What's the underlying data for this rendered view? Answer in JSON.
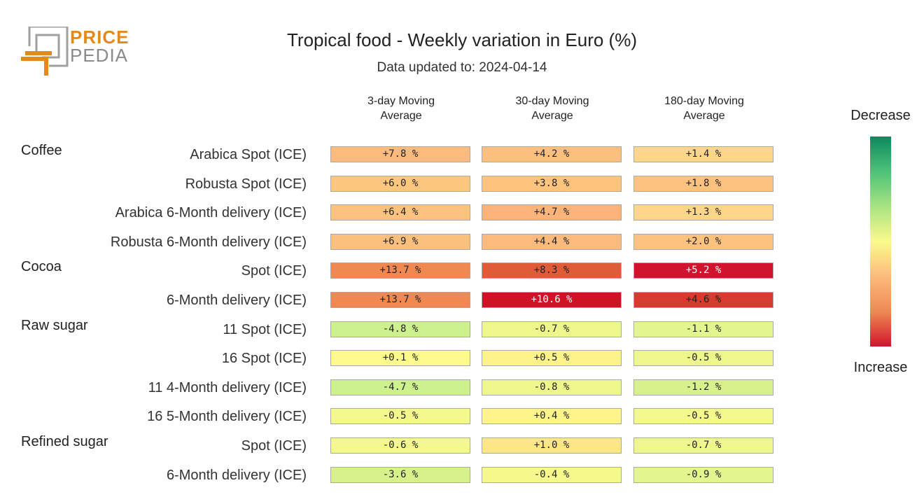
{
  "logo": {
    "word1": "PRICE",
    "word2": "PEDIA",
    "color_primary": "#e38a1c",
    "color_secondary": "#8a8a8a"
  },
  "chart_data": {
    "type": "heatmap",
    "title": "Tropical food - Weekly variation in Euro (%)",
    "subtitle": "Data updated to: 2024-04-14",
    "columns": [
      "3-day Moving\nAverage",
      "30-day Moving\nAverage",
      "180-day Moving\nAverage"
    ],
    "rows": [
      {
        "group": "Coffee",
        "label": "Arabica Spot (ICE)",
        "values": [
          7.8,
          4.2,
          1.4
        ],
        "text": [
          "+7.8 %",
          "+4.2 %",
          "+1.4 %"
        ]
      },
      {
        "group": "",
        "label": "Robusta Spot (ICE)",
        "values": [
          6.0,
          3.8,
          1.8
        ],
        "text": [
          "+6.0 %",
          "+3.8 %",
          "+1.8 %"
        ]
      },
      {
        "group": "",
        "label": "Arabica 6-Month delivery (ICE)",
        "values": [
          6.4,
          4.7,
          1.3
        ],
        "text": [
          "+6.4 %",
          "+4.7 %",
          "+1.3 %"
        ]
      },
      {
        "group": "",
        "label": "Robusta 6-Month delivery (ICE)",
        "values": [
          6.9,
          4.4,
          2.0
        ],
        "text": [
          "+6.9 %",
          "+4.4 %",
          "+2.0 %"
        ]
      },
      {
        "group": "Cocoa",
        "label": "Spot (ICE)",
        "values": [
          13.7,
          8.3,
          5.2
        ],
        "text": [
          "+13.7 %",
          "+8.3 %",
          "+5.2 %"
        ]
      },
      {
        "group": "",
        "label": "6-Month delivery (ICE)",
        "values": [
          13.7,
          10.6,
          4.6
        ],
        "text": [
          "+13.7 %",
          "+10.6 %",
          "+4.6 %"
        ]
      },
      {
        "group": "Raw sugar",
        "label": "11 Spot (ICE)",
        "values": [
          -4.8,
          -0.7,
          -1.1
        ],
        "text": [
          "-4.8 %",
          "-0.7 %",
          "-1.1 %"
        ]
      },
      {
        "group": "",
        "label": "16 Spot (ICE)",
        "values": [
          0.1,
          0.5,
          -0.5
        ],
        "text": [
          "+0.1 %",
          "+0.5 %",
          "-0.5 %"
        ]
      },
      {
        "group": "",
        "label": "11 4-Month delivery (ICE)",
        "values": [
          -4.7,
          -0.8,
          -1.2
        ],
        "text": [
          "-4.7 %",
          "-0.8 %",
          "-1.2 %"
        ]
      },
      {
        "group": "",
        "label": "16 5-Month delivery (ICE)",
        "values": [
          -0.5,
          0.4,
          -0.5
        ],
        "text": [
          "-0.5 %",
          "+0.4 %",
          "-0.5 %"
        ]
      },
      {
        "group": "Refined sugar",
        "label": "Spot (ICE)",
        "values": [
          -0.6,
          1.0,
          -0.7
        ],
        "text": [
          "-0.6 %",
          "+1.0 %",
          "-0.7 %"
        ]
      },
      {
        "group": "",
        "label": "6-Month delivery (ICE)",
        "values": [
          -3.6,
          -0.4,
          -0.9
        ],
        "text": [
          "-3.6 %",
          "-0.4 %",
          "-0.9 %"
        ]
      }
    ],
    "cell_colors": [
      [
        "#fcbb7c",
        "#fdbf7d",
        "#fed68a"
      ],
      [
        "#fdc77f",
        "#fec47d",
        "#fdc27e"
      ],
      [
        "#fdc27e",
        "#fcb47a",
        "#fed68a"
      ],
      [
        "#fcc07e",
        "#fcbb7c",
        "#fdc27e"
      ],
      [
        "#ef8851",
        "#e05c39",
        "#d0142d"
      ],
      [
        "#ef8851",
        "#d01226",
        "#d63b2f"
      ],
      [
        "#cdf18c",
        "#eef78c",
        "#e3f58f"
      ],
      [
        "#fcfb8b",
        "#fef38b",
        "#eef78c"
      ],
      [
        "#cdf18c",
        "#eef78c",
        "#d7f28b"
      ],
      [
        "#f3f98c",
        "#fdf48b",
        "#f3f98c"
      ],
      [
        "#f3f98c",
        "#fde686",
        "#eef78c"
      ],
      [
        "#d7f28b",
        "#f6f98c",
        "#e3f58f"
      ]
    ],
    "text_white_cells": [
      [
        4,
        2
      ],
      [
        5,
        1
      ]
    ],
    "legend": {
      "top": "Decrease",
      "bottom": "Increase",
      "gradient": [
        "#0b8a5e",
        "#4dc278",
        "#a8e383",
        "#fbfa8b",
        "#fcbb7c",
        "#ee8a53",
        "#d0142d"
      ]
    }
  }
}
